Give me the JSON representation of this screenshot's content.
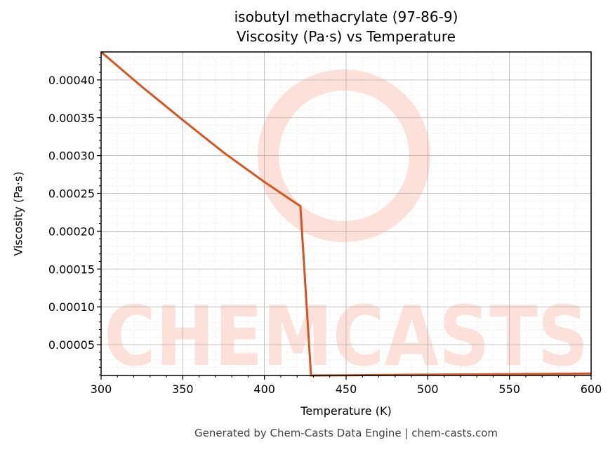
{
  "chart": {
    "title_line1": "isobutyl methacrylate (97-86-9)",
    "title_line2": "Viscosity (Pa·s) vs Temperature",
    "xlabel": "Temperature (K)",
    "ylabel": "Viscosity (Pa·s)",
    "footer": "Generated by Chem-Casts Data Engine | chem-casts.com",
    "watermark": "CHEMCASTS",
    "line_color": "#d9531e"
  },
  "chart_data": {
    "type": "line",
    "title": "isobutyl methacrylate (97-86-9) Viscosity (Pa·s) vs Temperature",
    "xlabel": "Temperature (K)",
    "ylabel": "Viscosity (Pa·s)",
    "xlim": [
      300,
      600
    ],
    "ylim": [
      9.2e-06,
      0.000437
    ],
    "xticks": [
      300,
      350,
      400,
      450,
      500,
      550,
      600
    ],
    "yticks": [
      "0.00005",
      "0.00010",
      "0.00015",
      "0.00020",
      "0.00025",
      "0.00030",
      "0.00035",
      "0.00040"
    ],
    "grid": true,
    "series": [
      {
        "name": "Viscosity",
        "x": [
          300,
          325,
          350,
          375,
          400,
          422,
          428.5,
          450,
          500,
          550,
          600
        ],
        "y": [
          0.000437,
          0.000391,
          0.000347,
          0.000304,
          0.000265,
          0.000233,
          9.2e-06,
          9.5e-06,
          1.03e-05,
          1.1e-05,
          1.18e-05
        ]
      }
    ]
  }
}
